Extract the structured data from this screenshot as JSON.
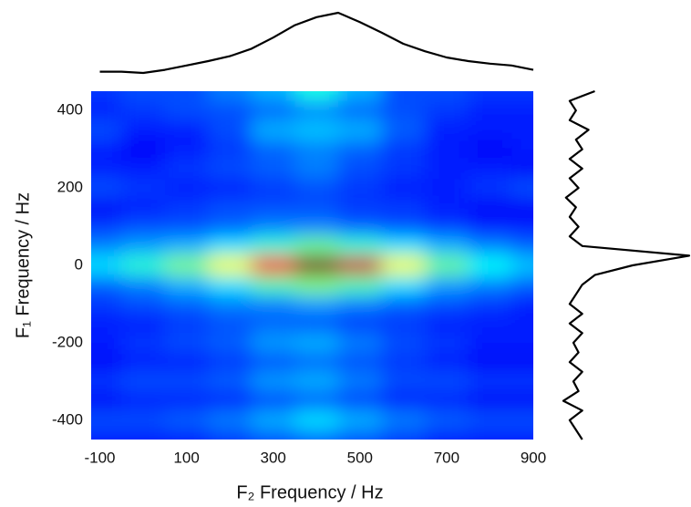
{
  "chart_data": {
    "type": "heatmap",
    "x_label": "F₂ Frequency / Hz",
    "y_label": "F₁ Frequency / Hz",
    "xlim": [
      -120,
      900
    ],
    "ylim": [
      -450,
      450
    ],
    "xticks": [
      -100,
      100,
      300,
      500,
      700,
      900
    ],
    "yticks": [
      400,
      200,
      0,
      -200,
      -400
    ],
    "grid": false,
    "colormap": "jet",
    "x": [
      -100,
      0,
      100,
      200,
      300,
      400,
      500,
      600,
      700,
      800,
      900
    ],
    "y": [
      450,
      400,
      350,
      300,
      250,
      200,
      150,
      100,
      50,
      0,
      -50,
      -100,
      -150,
      -200,
      -250,
      -300,
      -350,
      -400,
      -450
    ],
    "z": [
      [
        0.18,
        0.2,
        0.2,
        0.25,
        0.3,
        0.4,
        0.3,
        0.2,
        0.2,
        0.18,
        0.18
      ],
      [
        0.15,
        0.18,
        0.2,
        0.2,
        0.22,
        0.25,
        0.22,
        0.2,
        0.18,
        0.15,
        0.15
      ],
      [
        0.2,
        0.15,
        0.15,
        0.2,
        0.3,
        0.32,
        0.3,
        0.22,
        0.15,
        0.15,
        0.15
      ],
      [
        0.15,
        0.12,
        0.15,
        0.18,
        0.22,
        0.25,
        0.22,
        0.18,
        0.15,
        0.12,
        0.15
      ],
      [
        0.15,
        0.15,
        0.18,
        0.2,
        0.22,
        0.25,
        0.2,
        0.18,
        0.15,
        0.15,
        0.12
      ],
      [
        0.2,
        0.18,
        0.15,
        0.15,
        0.18,
        0.2,
        0.18,
        0.15,
        0.15,
        0.18,
        0.2
      ],
      [
        0.12,
        0.15,
        0.18,
        0.2,
        0.2,
        0.2,
        0.18,
        0.18,
        0.15,
        0.12,
        0.12
      ],
      [
        0.18,
        0.2,
        0.2,
        0.22,
        0.25,
        0.25,
        0.22,
        0.2,
        0.18,
        0.15,
        0.15
      ],
      [
        0.25,
        0.28,
        0.3,
        0.35,
        0.42,
        0.48,
        0.42,
        0.35,
        0.3,
        0.25,
        0.22
      ],
      [
        0.35,
        0.42,
        0.5,
        0.62,
        0.88,
        1.0,
        0.92,
        0.62,
        0.48,
        0.38,
        0.32
      ],
      [
        0.22,
        0.25,
        0.3,
        0.35,
        0.45,
        0.5,
        0.45,
        0.35,
        0.28,
        0.25,
        0.22
      ],
      [
        0.18,
        0.2,
        0.22,
        0.25,
        0.25,
        0.28,
        0.25,
        0.22,
        0.2,
        0.18,
        0.15
      ],
      [
        0.15,
        0.15,
        0.18,
        0.2,
        0.22,
        0.2,
        0.18,
        0.18,
        0.15,
        0.15,
        0.15
      ],
      [
        0.15,
        0.18,
        0.2,
        0.22,
        0.28,
        0.3,
        0.25,
        0.2,
        0.18,
        0.15,
        0.15
      ],
      [
        0.12,
        0.15,
        0.15,
        0.18,
        0.2,
        0.22,
        0.2,
        0.18,
        0.15,
        0.12,
        0.12
      ],
      [
        0.18,
        0.2,
        0.2,
        0.22,
        0.28,
        0.3,
        0.25,
        0.2,
        0.2,
        0.18,
        0.18
      ],
      [
        0.12,
        0.15,
        0.15,
        0.15,
        0.18,
        0.2,
        0.18,
        0.15,
        0.15,
        0.12,
        0.12
      ],
      [
        0.2,
        0.2,
        0.22,
        0.25,
        0.3,
        0.35,
        0.3,
        0.25,
        0.22,
        0.2,
        0.2
      ],
      [
        0.15,
        0.15,
        0.15,
        0.18,
        0.2,
        0.22,
        0.2,
        0.18,
        0.15,
        0.15,
        0.15
      ]
    ],
    "top_projection": {
      "color": "#000000",
      "ylim": [
        0,
        1
      ],
      "x": [
        -100,
        -50,
        0,
        50,
        100,
        150,
        200,
        250,
        300,
        350,
        400,
        450,
        500,
        550,
        600,
        650,
        700,
        750,
        800,
        850,
        900
      ],
      "values": [
        0.05,
        0.05,
        0.03,
        0.08,
        0.15,
        0.22,
        0.3,
        0.42,
        0.6,
        0.8,
        0.93,
        1.0,
        0.85,
        0.68,
        0.5,
        0.38,
        0.28,
        0.22,
        0.18,
        0.15,
        0.08
      ]
    },
    "side_projection": {
      "color": "#000000",
      "xlim": [
        0,
        1
      ],
      "y": [
        450,
        425,
        400,
        375,
        350,
        325,
        300,
        275,
        250,
        225,
        200,
        175,
        150,
        125,
        100,
        75,
        50,
        25,
        0,
        -25,
        -50,
        -75,
        -100,
        -125,
        -150,
        -175,
        -200,
        -225,
        -250,
        -275,
        -300,
        -325,
        -350,
        -375,
        -400,
        -425,
        -450
      ],
      "values": [
        0.25,
        0.05,
        0.1,
        0.05,
        0.2,
        0.1,
        0.15,
        0.05,
        0.15,
        0.05,
        0.12,
        0.02,
        0.1,
        0.05,
        0.12,
        0.05,
        0.15,
        1.0,
        0.55,
        0.25,
        0.15,
        0.1,
        0.05,
        0.15,
        0.05,
        0.15,
        0.08,
        0.12,
        0.05,
        0.15,
        0.08,
        0.12,
        0.0,
        0.15,
        0.05,
        0.1,
        0.15
      ]
    }
  }
}
